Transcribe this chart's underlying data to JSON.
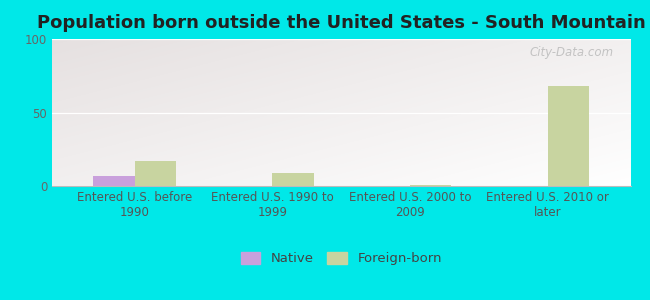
{
  "title": "Population born outside the United States - South Mountain",
  "categories": [
    "Entered U.S. before\n1990",
    "Entered U.S. 1990 to\n1999",
    "Entered U.S. 2000 to\n2009",
    "Entered U.S. 2010 or\nlater"
  ],
  "native_values": [
    7,
    0,
    0,
    0
  ],
  "foreign_values": [
    17,
    9,
    1,
    68
  ],
  "native_color": "#c9a0dc",
  "foreign_color": "#c8d4a0",
  "ylim": [
    0,
    100
  ],
  "yticks": [
    0,
    50,
    100
  ],
  "background_color": "#00e8e8",
  "bar_width": 0.3,
  "title_fontsize": 13,
  "tick_fontsize": 8.5,
  "legend_fontsize": 9.5,
  "watermark_text": "City-Data.com"
}
